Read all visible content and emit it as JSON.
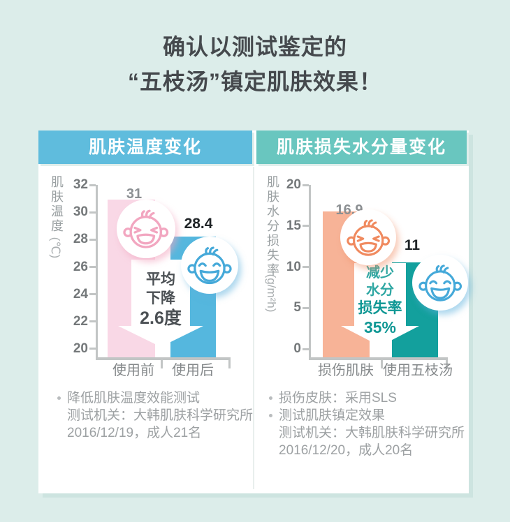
{
  "title": {
    "line1": "确认以测试鉴定的",
    "line2": "“五枝汤”镇定肌肤效果！"
  },
  "colors": {
    "background": "#dcedea",
    "card": "#ffffff",
    "header_left": "#5fbcdd",
    "header_right": "#69c6bf",
    "bar_pink": "#f9d8e6",
    "bar_blue": "#55b7de",
    "bar_peach": "#f7b397",
    "bar_teal": "#13a09d",
    "icon_pink": "#f2a6c0",
    "icon_blue": "#45a9d9",
    "icon_orange": "#f08a5f",
    "arrow_text_teal": "#0f9794"
  },
  "chart_data": [
    {
      "type": "bar",
      "title": "肌肤温度变化",
      "categories": [
        "使用前",
        "使用后"
      ],
      "values": [
        31,
        28.4
      ],
      "value_labels": [
        "31",
        "28.4"
      ],
      "ylabel": "肌肤温度",
      "y_unit": "(℃)",
      "ylim": [
        20,
        32
      ],
      "yticks": [
        "32",
        "30",
        "28",
        "26",
        "24",
        "22",
        "20"
      ],
      "bar_colors": [
        "#f9d8e6",
        "#55b7de"
      ],
      "bar_icons": [
        "angry-baby-icon",
        "happy-baby-icon"
      ],
      "annotation_lines": [
        "平均",
        "下降",
        "2.6度"
      ],
      "legend": "none",
      "grid": "off",
      "notes": [
        {
          "bullet": true,
          "text": "降低肌肤温度效能测试"
        },
        {
          "bullet": false,
          "text": "测试机关：大韩肌肤科学研究所"
        },
        {
          "bullet": false,
          "text": "2016/12/19，成人21名"
        }
      ]
    },
    {
      "type": "bar",
      "title": "肌肤损失水分量变化",
      "categories": [
        "损伤肌肤",
        "使用五枝汤"
      ],
      "values": [
        16.9,
        11
      ],
      "value_labels": [
        "16.9",
        "11"
      ],
      "ylabel": "肌肤水分损失率",
      "y_unit": "(g/m²h)",
      "ylim": [
        0,
        20
      ],
      "yticks": [
        "20",
        "15",
        "10",
        "5",
        "0"
      ],
      "bar_colors": [
        "#f7b397",
        "#13a09d"
      ],
      "bar_icons": [
        "angry-baby-icon",
        "happy-baby-icon"
      ],
      "annotation_lines": [
        "减少",
        "水分",
        "损失率",
        "35%"
      ],
      "legend": "none",
      "grid": "off",
      "notes": [
        {
          "bullet": true,
          "text": "损伤皮肤：采用SLS"
        },
        {
          "bullet": true,
          "text": "测试肌肤镇定效果"
        },
        {
          "bullet": false,
          "text": "测试机关：大韩肌肤科学研究所"
        },
        {
          "bullet": false,
          "text": "2016/12/20，成人20名"
        }
      ]
    }
  ]
}
